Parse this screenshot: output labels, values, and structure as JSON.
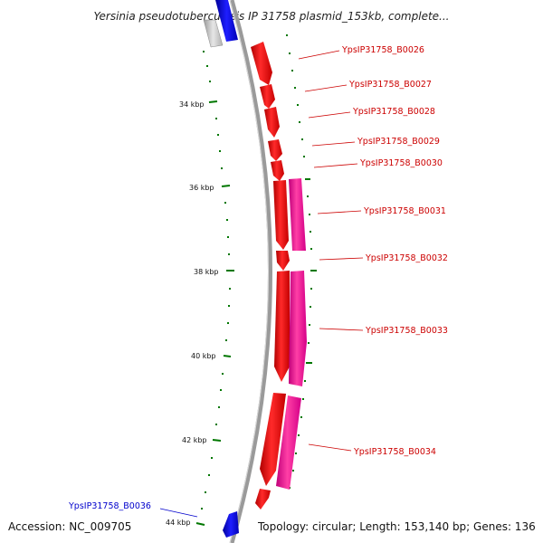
{
  "title": "Yersinia pseudotuberculosis IP 31758 plasmid_153kb, complete...",
  "footer": {
    "accession": "Accession: NC_009705",
    "info": "Topology: circular; Length: 153,140 bp; Genes: 136"
  },
  "colors": {
    "forward_gene": "#ff0000",
    "forward_gene_2": "#ff1493",
    "reverse_gene": "#0000ff",
    "backbone": "#888888",
    "tick": "#007700",
    "label_forward": "#cc0000",
    "label_reverse": "#0000cc"
  },
  "ticks": [
    "34 kbp",
    "36 kbp",
    "38 kbp",
    "40 kbp",
    "42 kbp",
    "44 kbp"
  ],
  "genes": [
    {
      "label": "YpsIP31758_B0026",
      "strand": "forward"
    },
    {
      "label": "YpsIP31758_B0027",
      "strand": "forward"
    },
    {
      "label": "YpsIP31758_B0028",
      "strand": "forward"
    },
    {
      "label": "YpsIP31758_B0029",
      "strand": "forward"
    },
    {
      "label": "YpsIP31758_B0030",
      "strand": "forward"
    },
    {
      "label": "YpsIP31758_B0031",
      "strand": "forward"
    },
    {
      "label": "YpsIP31758_B0032",
      "strand": "forward"
    },
    {
      "label": "YpsIP31758_B0033",
      "strand": "forward"
    },
    {
      "label": "YpsIP31758_B0034",
      "strand": "forward"
    },
    {
      "label": "YpsIP31758_B0036",
      "strand": "reverse"
    }
  ]
}
